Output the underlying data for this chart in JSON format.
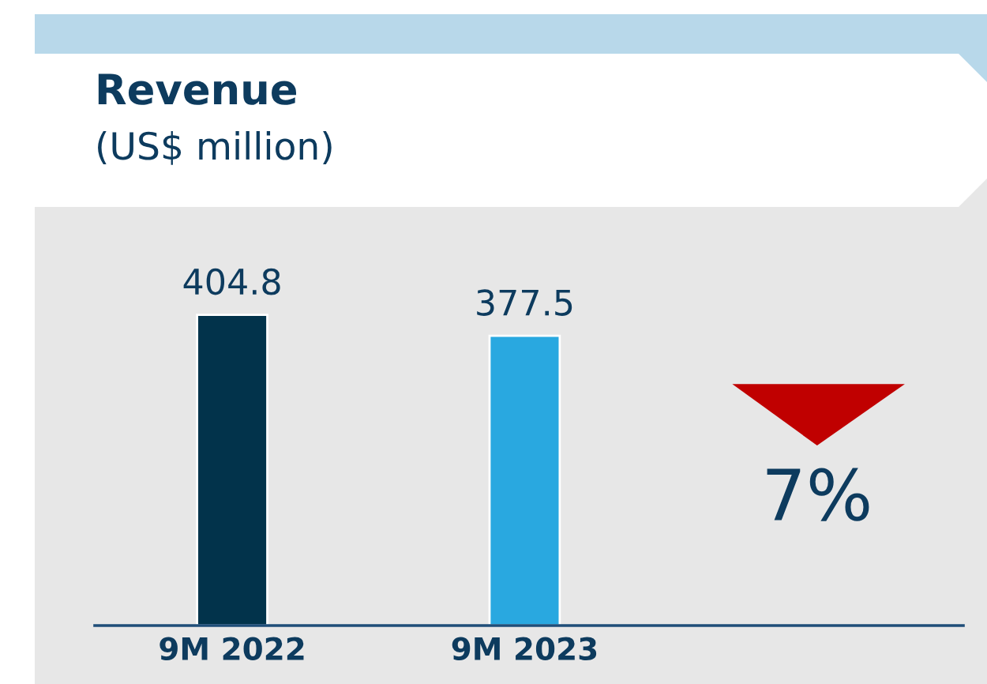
{
  "chart_data": {
    "type": "bar",
    "title": "Revenue",
    "subtitle": "(US$ million)",
    "categories": [
      "9M 2022",
      "9M 2023"
    ],
    "values": [
      404.8,
      377.5
    ],
    "colors": [
      "#02334b",
      "#29a8e0"
    ],
    "data_labels": true,
    "tick_labels": "x",
    "annotations": [
      "7%"
    ]
  }
}
